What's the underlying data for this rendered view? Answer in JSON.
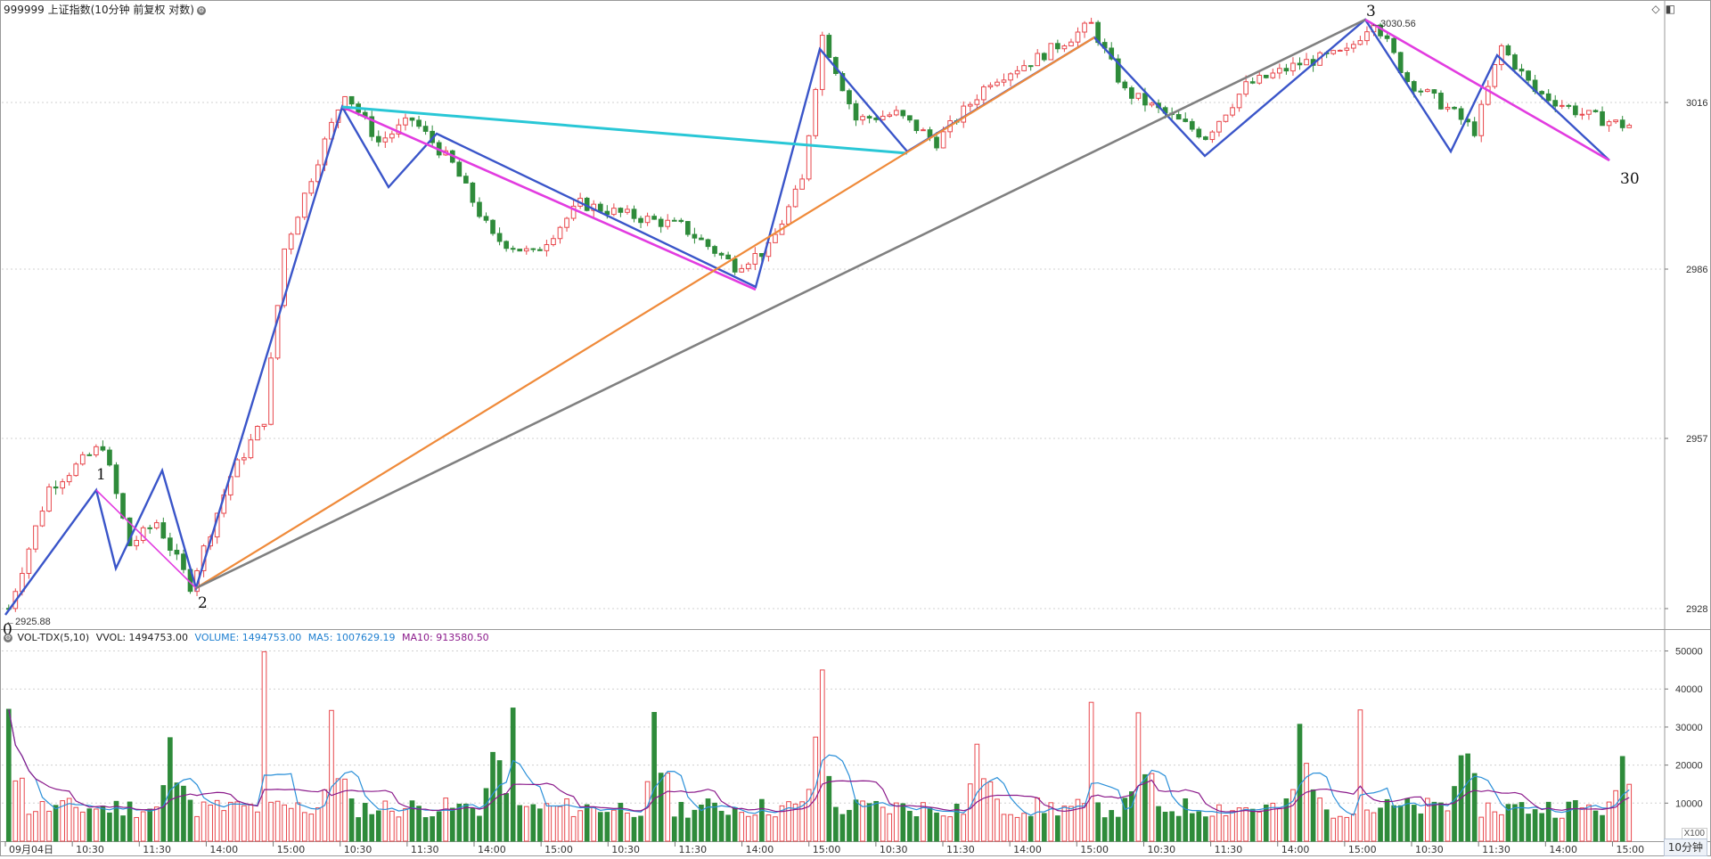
{
  "header": {
    "title": "999999 上证指数(10分钟 前复权 对数)",
    "settings_icon": "gear-icon"
  },
  "toolbar_icons": [
    "diamond-icon",
    "window-icon"
  ],
  "period_button": "10分钟",
  "volume_unit": "X100",
  "colors": {
    "up": "#e8474c",
    "down": "#2e8b3a",
    "wave_blue": "#3a55c9",
    "wave_magenta": "#e23ce0",
    "cyan": "#29c7d6",
    "orange": "#ef8a3a",
    "gray": "#808080",
    "vol_ma5": "#2b90d9",
    "vol_ma10": "#8b1a8b"
  },
  "price_axis": {
    "ticks": [
      "3016",
      "2986",
      "2957",
      "2928"
    ]
  },
  "volume_axis": {
    "ticks": [
      "50000",
      "40000",
      "30000",
      "20000",
      "10000"
    ]
  },
  "time_axis": [
    "09月04日",
    "10:30",
    "11:30",
    "14:00",
    "15:00",
    "10:30",
    "11:30",
    "14:00",
    "15:00",
    "10:30",
    "11:30",
    "14:00",
    "15:00",
    "10:30",
    "11:30",
    "14:00",
    "15:00",
    "10:30",
    "11:30",
    "14:00",
    "15:00",
    "10:30",
    "11:30",
    "14:00",
    "15:00"
  ],
  "annotations": {
    "low_label": "2925.88",
    "high_label": "3030.56",
    "wave_labels": [
      "0",
      "1",
      "2",
      "3",
      "30"
    ]
  },
  "volume_header": {
    "indicator": "VOL-TDX(5,10)",
    "vvol": "VVOL: 1494753.00",
    "volume": "VOLUME: 1494753.00",
    "ma5": "MA5: 1007629.19",
    "ma10": "MA10: 913580.50"
  },
  "chart_data": {
    "type": "candlestick",
    "scale": "log",
    "price_range": [
      2925.88,
      3030.56
    ],
    "wave_points": [
      {
        "label": "0",
        "value": 2925.88
      },
      {
        "label": "1",
        "value": 2955.5
      },
      {
        "label": "2",
        "value": 2931.0
      },
      {
        "label": "3",
        "value": 3030.56
      },
      {
        "label": "30",
        "value": 3007.5
      }
    ],
    "volume_max": 50000,
    "volume_latest": 14947.53,
    "volume_ma5_latest": 10076.29,
    "volume_ma10_latest": 9135.81
  }
}
